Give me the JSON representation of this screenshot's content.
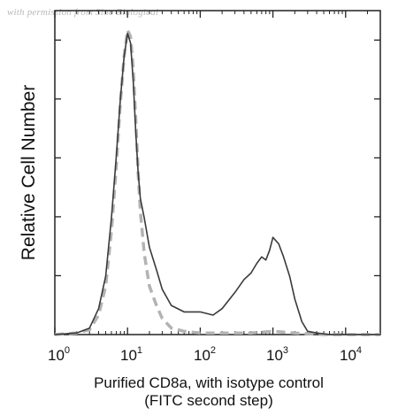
{
  "watermark": "with permission from Sino Biological",
  "chart_data": {
    "type": "line",
    "title": "",
    "xlabel_line1": "Purified CD8a, with isotype control",
    "xlabel_line2": "(FITC second step)",
    "ylabel": "Relative Cell Number",
    "x_scale": "log",
    "xlim": [
      1,
      30000
    ],
    "ylim": [
      0,
      100
    ],
    "x_ticks": [
      {
        "base": "10",
        "exp": "0",
        "value": 1
      },
      {
        "base": "10",
        "exp": "1",
        "value": 10
      },
      {
        "base": "10",
        "exp": "2",
        "value": 100
      },
      {
        "base": "10",
        "exp": "3",
        "value": 1000
      },
      {
        "base": "10",
        "exp": "4",
        "value": 10000
      }
    ],
    "grid": false,
    "legend": "none",
    "series": [
      {
        "style": "solid",
        "color": "#3a3a3a",
        "x": [
          1,
          2,
          3,
          4,
          5,
          6,
          7,
          8,
          9,
          10,
          11,
          12,
          13,
          14,
          15,
          17,
          20,
          25,
          30,
          40,
          60,
          100,
          150,
          200,
          300,
          400,
          500,
          600,
          700,
          800,
          900,
          1000,
          1200,
          1400,
          1700,
          2000,
          2500,
          3000,
          4000,
          6000,
          10000,
          30000
        ],
        "y": [
          0,
          0.5,
          2,
          8,
          18,
          36,
          55,
          73,
          86,
          93,
          90,
          78,
          62,
          50,
          42,
          36,
          27,
          20,
          14,
          9,
          7,
          7,
          6,
          8,
          13,
          17,
          19,
          22,
          24,
          23,
          26,
          30,
          28,
          24,
          18,
          11,
          4,
          1,
          0.5,
          0,
          0,
          0
        ]
      },
      {
        "style": "dashed",
        "color": "#b3b3b3",
        "x": [
          1,
          2,
          3,
          4,
          5,
          6,
          7,
          8,
          9,
          10,
          11,
          12,
          13,
          14,
          15,
          17,
          20,
          25,
          30,
          40,
          60,
          100,
          200,
          500,
          1000,
          2000,
          5000,
          30000
        ],
        "y": [
          0,
          0.5,
          1.5,
          6,
          15,
          32,
          52,
          72,
          86,
          94,
          92,
          82,
          66,
          50,
          38,
          25,
          15,
          9,
          5,
          2,
          1,
          0.5,
          0.5,
          0.5,
          1,
          0.5,
          0,
          0
        ]
      }
    ]
  }
}
